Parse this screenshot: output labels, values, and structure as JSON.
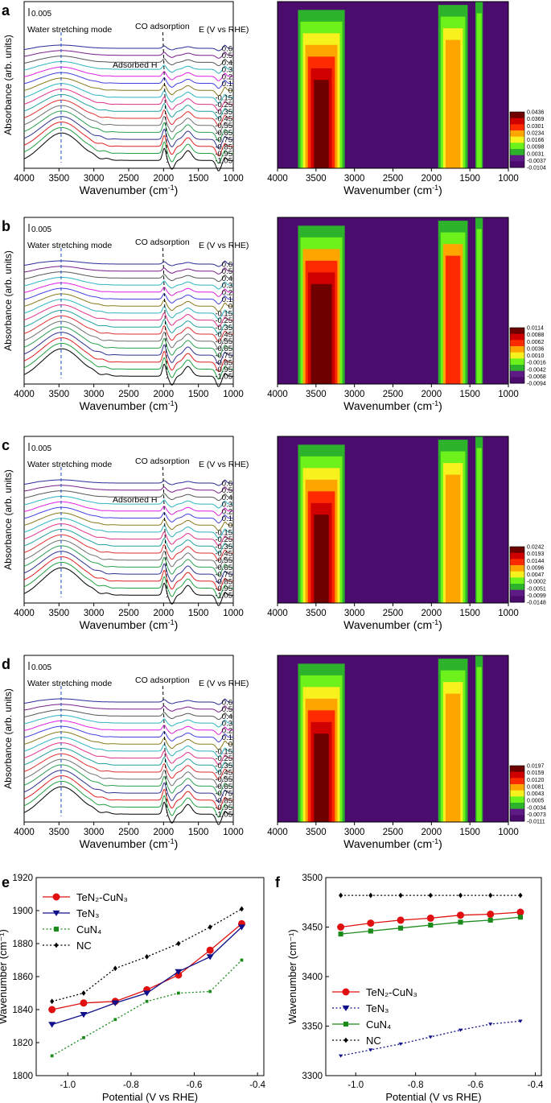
{
  "figure": {
    "common": {
      "wavenumber_axis_label": "Wavenumber (cm",
      "wavenumber_axis_label_sup": "-1",
      "wavenumber_axis_label_end": ")",
      "absorbance_label": "Absorbance (arb. units)",
      "wavenumber_ticks": [
        "4000",
        "3500",
        "3000",
        "2500",
        "2000",
        "1500",
        "1000"
      ],
      "potential_labels": [
        "0.6",
        "0.5",
        "0.4",
        "0.3",
        "0.2",
        "0.1",
        "0",
        "-0.15",
        "-0.25",
        "-0.35",
        "-0.45",
        "-0.55",
        "-0.65",
        "-0.75",
        "-0.85",
        "-0.95",
        "-1.05"
      ],
      "scale_bar": "0.005",
      "water_label": "Water stretching mode",
      "co_label": "CO adsorption",
      "e_label": "E (V vs RHE)",
      "adsorbed_h_label": "Adsorbed H",
      "series_colors": [
        "#2a2a9a",
        "#7a1e8a",
        "#555555",
        "#2db4c0",
        "#e020e0",
        "#4040e0",
        "#8a7a1a",
        "#2db4c0",
        "#e0308a",
        "#20a0a0",
        "#e03030",
        "#707070",
        "#2aa050",
        "#303090",
        "#e02020",
        "#20a040",
        "#000000"
      ],
      "contour_colors": [
        "#4b0c6e",
        "#5e1b86",
        "#2db22b",
        "#6cf21a",
        "#f7f11e",
        "#ffa500",
        "#ff2b00",
        "#d00000",
        "#6e0000"
      ]
    },
    "panels": [
      {
        "letter": "a",
        "has_adsorbed_h": true,
        "colorbar": [
          "0.0436",
          "0.0369",
          "0.0301",
          "0.0234",
          "0.0166",
          "0.0098",
          "0.0031",
          "-0.0037",
          "-0.0104"
        ]
      },
      {
        "letter": "b",
        "has_adsorbed_h": false,
        "colorbar": [
          "0.0114",
          "0.0088",
          "0.0062",
          "0.0036",
          "0.0010",
          "-0.0016",
          "-0.0042",
          "-0.0068",
          "-0.0094"
        ]
      },
      {
        "letter": "c",
        "has_adsorbed_h": true,
        "colorbar": [
          "0.0242",
          "0.0193",
          "0.0144",
          "0.0096",
          "0.0047",
          "-0.0002",
          "-0.0051",
          "-0.0099",
          "-0.0148"
        ]
      },
      {
        "letter": "d",
        "has_adsorbed_h": false,
        "colorbar": [
          "0.0197",
          "0.0159",
          "0.0120",
          "0.0081",
          "0.0043",
          "0.0005",
          "-0.0034",
          "-0.0073",
          "-0.0111"
        ]
      }
    ]
  },
  "chart_data": [
    {
      "panel": "e",
      "type": "line",
      "xlabel": "Potential (V vs RHE)",
      "ylabel": "Wavenumber (cm⁻¹)",
      "xlim": [
        -1.1,
        -0.38
      ],
      "ylim": [
        1800,
        1920
      ],
      "xticks": [
        "-1.0",
        "-0.8",
        "-0.6",
        "-0.4"
      ],
      "yticks": [
        "1800",
        "1820",
        "1840",
        "1860",
        "1880",
        "1900",
        "1920"
      ],
      "x": [
        -1.05,
        -0.95,
        -0.85,
        -0.75,
        -0.65,
        -0.55,
        -0.45
      ],
      "legend": "top-left",
      "series": [
        {
          "name": "TeN₂-CuN₃",
          "color": "#e01010",
          "marker": "circle",
          "dash": "solid",
          "values": [
            1840,
            1844,
            1845,
            1852,
            1861,
            1876,
            1892
          ]
        },
        {
          "name": "TeN₃",
          "color": "#10108a",
          "marker": "triangle-down",
          "dash": "solid",
          "values": [
            1831,
            1837,
            1844,
            1850,
            1863,
            1872,
            1890
          ]
        },
        {
          "name": "CuN₄",
          "color": "#1a8a1a",
          "marker": "square",
          "dash": "dotted",
          "values": [
            1812,
            1823,
            1834,
            1845,
            1850,
            1851,
            1870
          ]
        },
        {
          "name": "NC",
          "color": "#000000",
          "marker": "diamond",
          "dash": "dotted",
          "values": [
            1845,
            1850,
            1865,
            1872,
            1880,
            1890,
            1901
          ]
        }
      ]
    },
    {
      "panel": "f",
      "type": "line",
      "xlabel": "Potential (V vs RHE)",
      "ylabel": "Wavenumber (cm⁻¹)",
      "xlim": [
        -1.1,
        -0.38
      ],
      "ylim": [
        3300,
        3500
      ],
      "xticks": [
        "-1.0",
        "-0.8",
        "-0.6",
        "-0.4"
      ],
      "yticks": [
        "3300",
        "3350",
        "3400",
        "3450",
        "3500"
      ],
      "x": [
        -1.05,
        -0.95,
        -0.85,
        -0.75,
        -0.65,
        -0.55,
        -0.45
      ],
      "legend": "bottom-left",
      "series": [
        {
          "name": "TeN₂-CuN₃",
          "color": "#e01010",
          "marker": "circle",
          "dash": "solid",
          "values": [
            3450,
            3454,
            3457,
            3459,
            3462,
            3463,
            3465
          ]
        },
        {
          "name": "TeN₃",
          "color": "#10108a",
          "marker": "triangle-down",
          "dash": "dotted",
          "values": [
            3320,
            3326,
            3332,
            3339,
            3346,
            3352,
            3355
          ]
        },
        {
          "name": "CuN₄",
          "color": "#1a8a1a",
          "marker": "square",
          "dash": "solid",
          "values": [
            3443,
            3446,
            3449,
            3452,
            3455,
            3457,
            3460
          ]
        },
        {
          "name": "NC",
          "color": "#000000",
          "marker": "diamond",
          "dash": "dotted",
          "values": [
            3482,
            3482,
            3482,
            3482,
            3482,
            3482,
            3482
          ]
        }
      ]
    }
  ]
}
